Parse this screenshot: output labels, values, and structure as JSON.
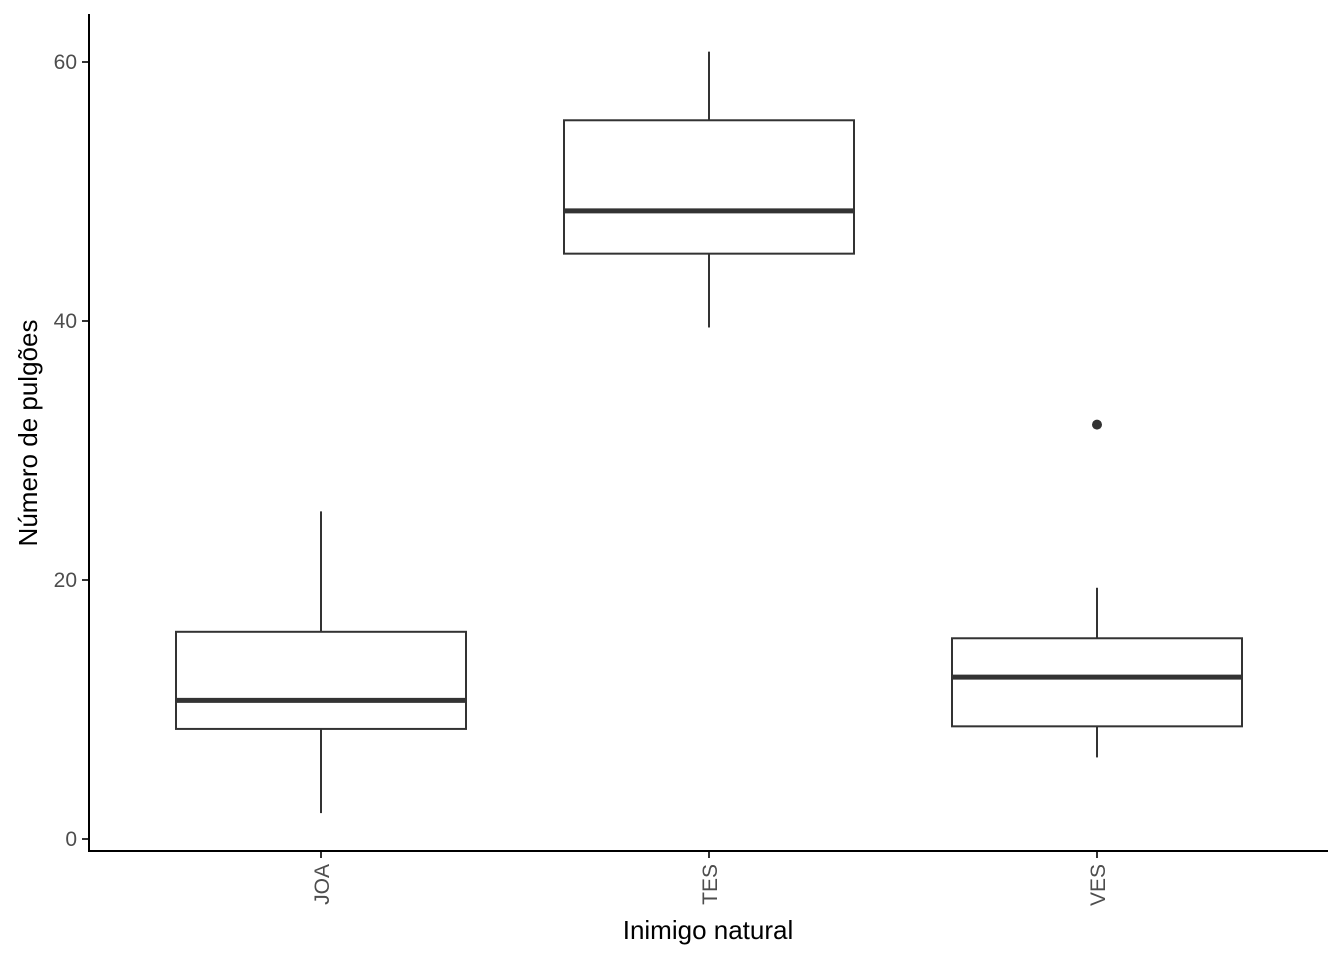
{
  "chart_data": {
    "type": "boxplot",
    "title": "",
    "xlabel": "Inimigo natural",
    "ylabel": "Número de pulgões",
    "ylim": [
      -1,
      63.5
    ],
    "yticks": [
      0,
      20,
      40,
      60
    ],
    "ytick_labels": [
      "0",
      "20",
      "40",
      "60"
    ],
    "grid": false,
    "legend": "none",
    "categories": [
      "JOA",
      "TES",
      "VES"
    ],
    "boxes": [
      {
        "category": "JOA",
        "whisker_low": 2,
        "q1": 8.5,
        "median": 10.7,
        "q3": 16,
        "whisker_high": 25.3,
        "outliers": []
      },
      {
        "category": "TES",
        "whisker_low": 39.5,
        "q1": 45.2,
        "median": 48.5,
        "q3": 55.5,
        "whisker_high": 60.8,
        "outliers": []
      },
      {
        "category": "VES",
        "whisker_low": 6.3,
        "q1": 8.7,
        "median": 12.5,
        "q3": 15.5,
        "whisker_high": 19.4,
        "outliers": [
          32
        ]
      }
    ],
    "colors": {
      "box_stroke": "#333333",
      "axis": "#000000",
      "tick_label": "#4d4d4d"
    }
  }
}
